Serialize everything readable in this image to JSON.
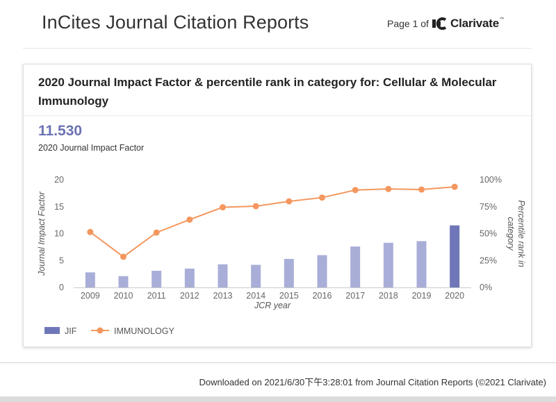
{
  "header": {
    "title": "InCites Journal Citation Reports",
    "page_indicator": "Page 1 of",
    "brand": "Clarivate",
    "brand_tm": "™"
  },
  "card": {
    "title": "2020 Journal Impact Factor & percentile rank in category for: Cellular & Molecular Immunology",
    "jif_value": "11.530",
    "jif_label": "2020 Journal Impact Factor"
  },
  "chart_data": {
    "type": "bar",
    "categories": [
      "2009",
      "2010",
      "2011",
      "2012",
      "2013",
      "2014",
      "2015",
      "2016",
      "2017",
      "2018",
      "2019",
      "2020"
    ],
    "series": [
      {
        "name": "JIF",
        "type": "bar",
        "axis": "left",
        "values": [
          2.8,
          2.1,
          3.1,
          3.5,
          4.3,
          4.2,
          5.3,
          6.0,
          7.6,
          8.3,
          8.6,
          11.53
        ]
      },
      {
        "name": "IMMUNOLOGY",
        "type": "line",
        "axis": "right",
        "values": [
          51.5,
          28.5,
          51,
          63,
          74.5,
          75.5,
          80,
          83.5,
          90.5,
          91.5,
          91,
          93.5
        ]
      }
    ],
    "xlabel": "JCR year",
    "ylabel": "Journal Impact Factor",
    "ylabel_right": "Percentile rank in category",
    "ylim": [
      0,
      20
    ],
    "yticks": [
      "0",
      "5",
      "10",
      "15",
      "20"
    ],
    "ylim_right": [
      0,
      100
    ],
    "yticks_right": [
      "0%",
      "25%",
      "50%",
      "75%",
      "100%"
    ],
    "grid": false,
    "legend": "bottom-left",
    "colors": {
      "bar": "#a9aed8",
      "bar_highlight": "#6f77b8",
      "line": "#f4975e"
    }
  },
  "footer": {
    "downloaded": "Downloaded on 2021/6/30下午3:28:01 from Journal Citation Reports (©2021 Clarivate)"
  }
}
